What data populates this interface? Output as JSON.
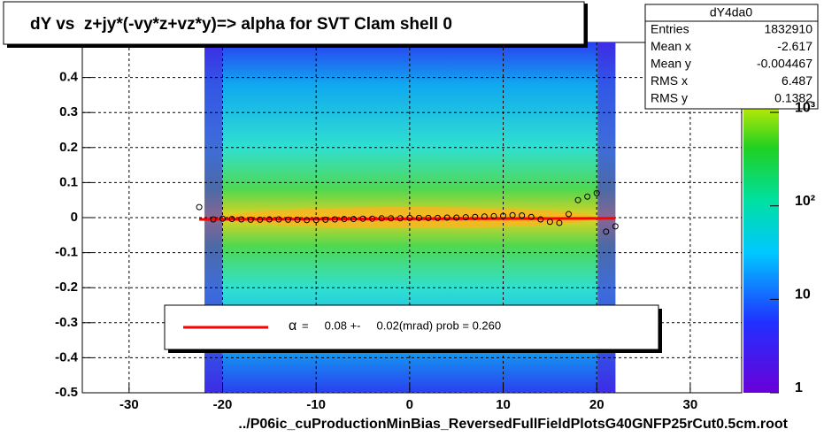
{
  "chart_data": {
    "type": "scatter",
    "title": "dY vs  z+jy*(-vy*z+vz*y)=> alpha for SVT Clam shell 0",
    "x_label": "../P06ic_cuProductionMinBias_ReversedFullFieldPlotsG40GNFP25rCut0.5cm.root",
    "xlim": [
      -35,
      35.5
    ],
    "ylim": [
      -0.5,
      0.5
    ],
    "xticks": [
      -30,
      -20,
      -10,
      0,
      10,
      20,
      30
    ],
    "yticks": [
      -0.5,
      -0.4,
      -0.3,
      -0.2,
      -0.1,
      0,
      0.1,
      0.2,
      0.3,
      0.4
    ],
    "grid": true,
    "zlim": [
      1,
      5600
    ],
    "zlog": true,
    "zticks": [
      {
        "value": 1,
        "label": "1"
      },
      {
        "value": 10,
        "label": "10"
      },
      {
        "value": 100,
        "label": "10²"
      },
      {
        "value": 1000,
        "label": "10³"
      }
    ],
    "x": [
      -22.5,
      -21,
      -20,
      -19,
      -18,
      -17,
      -16,
      -15,
      -14,
      -13,
      -12,
      -11,
      -10,
      -9,
      -8,
      -7,
      -6,
      -5,
      -4,
      -3,
      -2,
      -1,
      0,
      1,
      2,
      3,
      4,
      5,
      6,
      7,
      8,
      9,
      10,
      11,
      12,
      13,
      14,
      15,
      16,
      17,
      18,
      19,
      20,
      21,
      22
    ],
    "series": [
      {
        "name": "profile",
        "color": "#000000",
        "values": [
          0.03,
          -0.005,
          -0.003,
          -0.004,
          -0.005,
          -0.006,
          -0.006,
          -0.005,
          -0.005,
          -0.006,
          -0.006,
          -0.007,
          -0.007,
          -0.006,
          -0.005,
          -0.004,
          -0.004,
          -0.003,
          -0.003,
          -0.002,
          -0.002,
          -0.002,
          -0.001,
          -0.001,
          -0.001,
          -0.001,
          0,
          0,
          0.001,
          0.002,
          0.003,
          0.004,
          0.005,
          0.007,
          0.006,
          0.002,
          -0.005,
          -0.012,
          -0.015,
          0.01,
          0.05,
          0.06,
          0.07,
          -0.04,
          -0.025
        ]
      }
    ],
    "fit": {
      "name": "fit",
      "color": "#ff0000",
      "x": [
        -22.5,
        22
      ],
      "values": [
        -0.005,
        -0.002
      ]
    },
    "stats": {
      "title": "dY4da0",
      "rows": [
        [
          "Entries",
          "1832910"
        ],
        [
          "Mean x",
          "-2.617"
        ],
        [
          "Mean y",
          "-0.004467"
        ],
        [
          "RMS x",
          "6.487"
        ],
        [
          "RMS y",
          "0.1382"
        ]
      ]
    },
    "legend": {
      "symbol": "α",
      "text": "=     0.08 +-     0.02(mrad) prob = 0.260"
    }
  }
}
